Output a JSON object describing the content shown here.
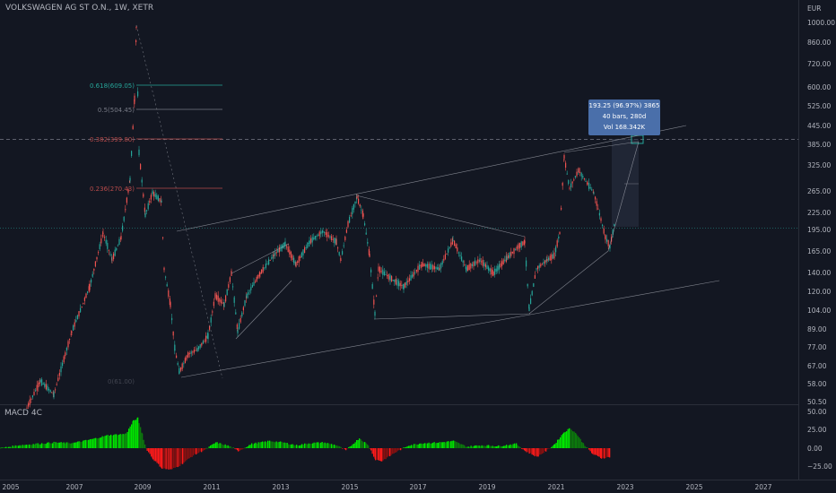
{
  "header": {
    "symbol_line": "VOLKSWAGEN AG ST O.N., 1W, XETR",
    "currency": "EUR"
  },
  "price_axis": {
    "labels": [
      "1000.00",
      "860.00",
      "720.00",
      "600.00",
      "525.00",
      "445.00",
      "385.00",
      "325.00",
      "265.00",
      "225.00",
      "195.00",
      "165.00",
      "140.00",
      "120.00",
      "104.00",
      "89.00",
      "77.00",
      "67.00",
      "58.00",
      "50.50"
    ]
  },
  "time_axis": {
    "labels": [
      "2005",
      "2007",
      "2009",
      "2011",
      "2013",
      "2015",
      "2017",
      "2019",
      "2021",
      "2023",
      "2025",
      "2027"
    ]
  },
  "fib_levels": [
    {
      "label": "0.618(609.05)",
      "color": "#26a69a"
    },
    {
      "label": "0.5(504.45)",
      "color": "#787b86"
    },
    {
      "label": "0.382(399.80)",
      "color": "#b84b4b"
    },
    {
      "label": "0.236(270.43)",
      "color": "#b84b4b"
    },
    {
      "label": "0(61.00)",
      "color": "#434651"
    }
  ],
  "measure_tooltip": {
    "line1": "193.25 (96.97%) 3865",
    "line2": "40 bars, 280d",
    "line3": "Vol 168.342K"
  },
  "macd": {
    "title": "MACD 4C",
    "axis_labels": [
      "50.00",
      "25.00",
      "0.00",
      "−25.00"
    ],
    "colors": {
      "up_strong": "#00e600",
      "up_weak": "#0c7a0c",
      "down_strong": "#ff1a1a",
      "down_weak": "#8a1010"
    }
  },
  "colors": {
    "background": "#131722",
    "candle_up": "#26a69a",
    "candle_down": "#ef5350",
    "trendline": "#b2b5be"
  }
}
